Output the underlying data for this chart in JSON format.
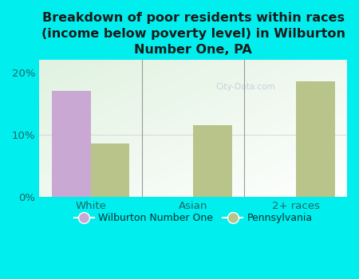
{
  "title": "Breakdown of poor residents within races\n(income below poverty level) in Wilburton\nNumber One, PA",
  "categories": [
    "White",
    "Asian",
    "2+ races"
  ],
  "wilburton_values": [
    17.0,
    0,
    0
  ],
  "pennsylvania_values": [
    8.5,
    11.5,
    18.5
  ],
  "wilburton_color": "#c9a8d4",
  "pennsylvania_color": "#b8c48a",
  "background_color": "#00eeee",
  "ylim": [
    0,
    22
  ],
  "yticks": [
    0,
    10,
    20
  ],
  "ytick_labels": [
    "0%",
    "10%",
    "20%"
  ],
  "bar_width": 0.38,
  "legend_labels": [
    "Wilburton Number One",
    "Pennsylvania"
  ],
  "title_fontsize": 11.5,
  "tick_fontsize": 9.5,
  "legend_fontsize": 9,
  "watermark": "City-Data.com"
}
